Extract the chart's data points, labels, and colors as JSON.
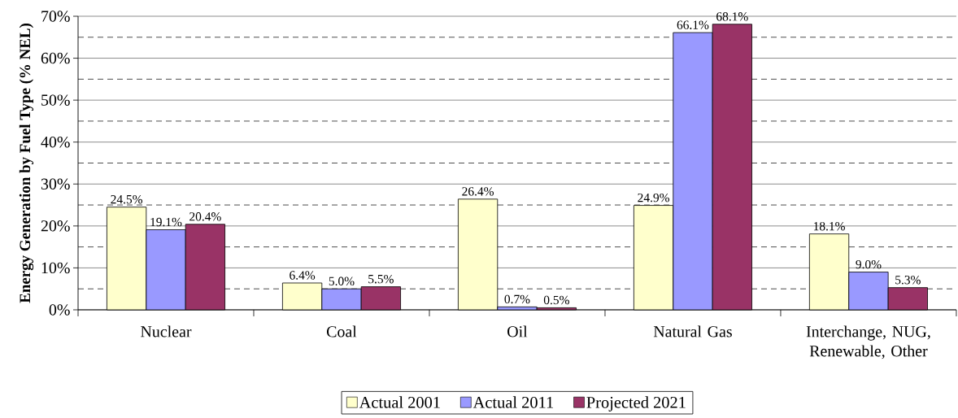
{
  "chart_data": {
    "type": "bar",
    "ylabel": "Energy Generation by Fuel Type (% NEL)",
    "categories": [
      "Nuclear",
      "Coal",
      "Oil",
      "Natural Gas",
      "Interchange, NUG, Renewable, Other"
    ],
    "series": [
      {
        "name": "Actual 2001",
        "color": "#ffffcc",
        "values": [
          24.5,
          6.4,
          26.4,
          24.9,
          18.1
        ],
        "value_labels": [
          "24.5%",
          "6.4%",
          "26.4%",
          "24.9%",
          "18.1%"
        ]
      },
      {
        "name": "Actual 2011",
        "color": "#9999ff",
        "values": [
          19.1,
          5.0,
          0.7,
          66.1,
          9.0
        ],
        "value_labels": [
          "19.1%",
          "5.0%",
          "0.7%",
          "66.1%",
          "9.0%"
        ]
      },
      {
        "name": "Projected 2021",
        "color": "#993366",
        "values": [
          20.4,
          5.5,
          0.5,
          68.1,
          5.3
        ],
        "value_labels": [
          "20.4%",
          "5.5%",
          "0.5%",
          "68.1%",
          "5.3%"
        ]
      }
    ],
    "ylim": [
      0,
      70
    ],
    "yticks": [
      {
        "value": 0,
        "label": "0%"
      },
      {
        "value": 10,
        "label": "10%"
      },
      {
        "value": 20,
        "label": "20%"
      },
      {
        "value": 30,
        "label": "30%"
      },
      {
        "value": 40,
        "label": "40%"
      },
      {
        "value": 50,
        "label": "50%"
      },
      {
        "value": 60,
        "label": "60%"
      },
      {
        "value": 70,
        "label": "70%"
      }
    ],
    "grid": "y",
    "legend": "bottom"
  }
}
